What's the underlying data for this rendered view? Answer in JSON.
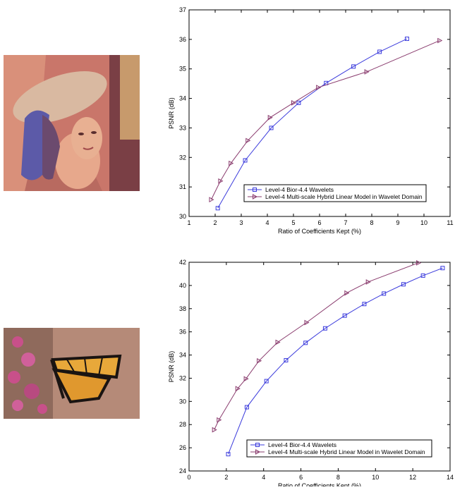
{
  "images": [
    {
      "subject": "lena",
      "colors": {
        "bg": "#c9766a",
        "face": "#e7a88c",
        "hat": "#d9b9a1",
        "hair": "#6b4a6e",
        "feather": "#5c5aa8"
      }
    },
    {
      "subject": "butterfly",
      "colors": {
        "bg": "#b58a78",
        "wing": "#e8a83a",
        "vein": "#1a1412",
        "flower": "#c8508a",
        "leaf": "#6e7a4e"
      }
    }
  ],
  "colors": {
    "series1": "#3b3bdc",
    "series2": "#8a3c6e",
    "axis": "#000000"
  },
  "chart_data": [
    {
      "type": "line",
      "xlabel": "Ratio of Coefficients Kept (%)",
      "ylabel": "PSNR (dB)",
      "xlim": [
        1,
        11
      ],
      "ylim": [
        30,
        37
      ],
      "xticks": [
        "1",
        "2",
        "3",
        "4",
        "5",
        "6",
        "7",
        "8",
        "9",
        "10",
        "11"
      ],
      "yticks": [
        "30",
        "31",
        "32",
        "33",
        "34",
        "35",
        "36",
        "37"
      ],
      "grid": false,
      "legend_position": "bottom-right",
      "series": [
        {
          "name": "Level-4 Bior-4.4 Wavelets",
          "marker": "square",
          "x": [
            2.1,
            3.15,
            4.15,
            5.2,
            6.25,
            7.3,
            8.3,
            9.35
          ],
          "y": [
            30.28,
            31.9,
            33.0,
            33.85,
            34.52,
            35.08,
            35.58,
            36.02
          ]
        },
        {
          "name": "Level-4 Multi-scale Hybrid Linear Model in Wavelet Domain",
          "marker": "triangle-right",
          "x": [
            1.85,
            2.2,
            2.6,
            3.25,
            4.1,
            5.0,
            5.95,
            7.8,
            10.6
          ],
          "y": [
            30.57,
            31.2,
            31.8,
            32.57,
            33.35,
            33.85,
            34.37,
            34.9,
            35.96
          ]
        }
      ]
    },
    {
      "type": "line",
      "xlabel": "Ratio of Coefficients Kept (%)",
      "ylabel": "PSNR (dB)",
      "xlim": [
        0,
        14
      ],
      "ylim": [
        24,
        42
      ],
      "xticks": [
        "0",
        "2",
        "4",
        "6",
        "8",
        "10",
        "12",
        "14"
      ],
      "yticks": [
        "24",
        "26",
        "28",
        "30",
        "32",
        "34",
        "36",
        "38",
        "40",
        "42"
      ],
      "grid": false,
      "legend_position": "bottom-right",
      "series": [
        {
          "name": "Level-4 Bior-4.4 Wavelets",
          "marker": "square",
          "x": [
            2.1,
            3.1,
            4.15,
            5.2,
            6.25,
            7.3,
            8.35,
            9.4,
            10.45,
            11.5,
            12.55,
            13.6
          ],
          "y": [
            25.45,
            29.5,
            31.75,
            33.55,
            35.05,
            36.3,
            37.4,
            38.4,
            39.3,
            40.1,
            40.85,
            41.5
          ]
        },
        {
          "name": "Level-4 Multi-scale Hybrid Linear Model in Wavelet Domain",
          "marker": "triangle-right",
          "x": [
            1.35,
            1.6,
            2.6,
            3.05,
            3.75,
            4.75,
            6.3,
            8.45,
            9.6,
            12.3
          ],
          "y": [
            27.55,
            28.4,
            31.1,
            31.95,
            33.5,
            35.1,
            36.8,
            39.35,
            40.3,
            41.95
          ]
        }
      ]
    }
  ]
}
